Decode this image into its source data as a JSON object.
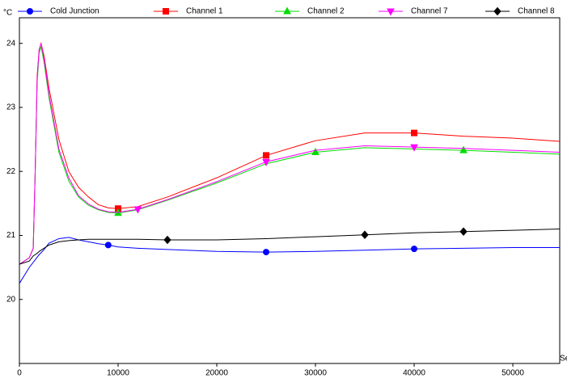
{
  "chart_data": {
    "type": "line",
    "y_unit": "°C",
    "x_label": "Se",
    "x": [
      0,
      1000,
      1400,
      1600,
      1800,
      2000,
      2200,
      2500,
      3000,
      4000,
      5000,
      6000,
      7000,
      8000,
      9000,
      10000,
      12000,
      15000,
      20000,
      25000,
      30000,
      35000,
      40000,
      45000,
      50000,
      54750
    ],
    "series": [
      {
        "name": "Cold Junction",
        "color": "#0000ff",
        "marker": "circle",
        "values": [
          20.25,
          20.5,
          20.58,
          20.62,
          20.66,
          20.7,
          20.73,
          20.78,
          20.88,
          20.95,
          20.97,
          20.93,
          20.9,
          20.87,
          20.85,
          20.82,
          20.8,
          20.78,
          20.75,
          20.74,
          20.75,
          20.77,
          20.79,
          20.8,
          20.81,
          20.81
        ]
      },
      {
        "name": "Channel 1",
        "color": "#ff0000",
        "marker": "square",
        "values": [
          20.55,
          20.65,
          20.8,
          22.0,
          23.5,
          23.9,
          24.0,
          23.8,
          23.3,
          22.5,
          22.0,
          21.75,
          21.6,
          21.48,
          21.43,
          21.42,
          21.45,
          21.6,
          21.9,
          22.25,
          22.48,
          22.6,
          22.6,
          22.55,
          22.52,
          22.47
        ]
      },
      {
        "name": "Channel 2",
        "color": "#00dd00",
        "marker": "triangle",
        "values": [
          20.55,
          20.65,
          20.8,
          22.0,
          23.4,
          23.85,
          23.95,
          23.7,
          23.15,
          22.3,
          21.85,
          21.6,
          21.47,
          21.4,
          21.36,
          21.35,
          21.4,
          21.55,
          21.82,
          22.12,
          22.3,
          22.37,
          22.35,
          22.33,
          22.3,
          22.27
        ]
      },
      {
        "name": "Channel 7",
        "color": "#ff00ff",
        "marker": "triangle-down",
        "values": [
          20.55,
          20.65,
          20.8,
          22.0,
          23.45,
          23.9,
          24.0,
          23.75,
          23.2,
          22.35,
          21.9,
          21.62,
          21.49,
          21.41,
          21.37,
          21.36,
          21.41,
          21.56,
          21.84,
          22.15,
          22.33,
          22.4,
          22.38,
          22.36,
          22.33,
          22.3
        ]
      },
      {
        "name": "Channel 8",
        "color": "#000000",
        "marker": "diamond",
        "values": [
          20.55,
          20.6,
          20.68,
          20.7,
          20.72,
          20.75,
          20.77,
          20.8,
          20.85,
          20.9,
          20.92,
          20.93,
          20.94,
          20.94,
          20.94,
          20.94,
          20.94,
          20.93,
          20.93,
          20.95,
          20.98,
          21.01,
          21.04,
          21.06,
          21.08,
          21.1
        ]
      }
    ],
    "xlim": [
      0,
      54750
    ],
    "ylim": [
      19,
      24.4
    ],
    "xticks": [
      0,
      10000,
      20000,
      30000,
      40000,
      50000
    ],
    "yticks": [
      20,
      21,
      22,
      23,
      24
    ],
    "grid": false
  }
}
